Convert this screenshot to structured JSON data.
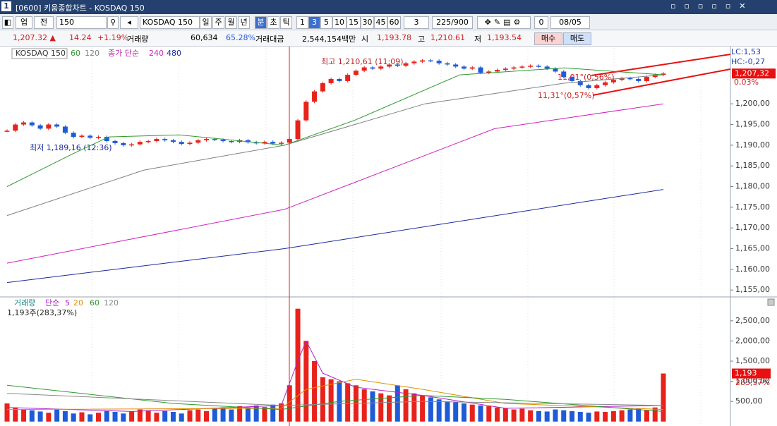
{
  "window": {
    "number": "1",
    "title": "[0600] 키움종합차트 - KOSDAQ 150"
  },
  "toolbar": {
    "market": "업",
    "scope": "전",
    "code": "150",
    "name": "KOSDAQ 150",
    "periods": [
      "일",
      "주",
      "월",
      "년",
      "분",
      "초",
      "틱"
    ],
    "period_selected": 4,
    "intervals": [
      "1",
      "3",
      "5",
      "10",
      "15",
      "30",
      "45",
      "60"
    ],
    "interval_selected": 1,
    "count_select": "3",
    "count": "225/900",
    "checkbox_value": "0",
    "date": "08/05"
  },
  "quote": {
    "price": "1,207.32 ▲",
    "change": "14.24",
    "change_rate": "+1.19%",
    "volume_label": "거래량",
    "volume": "60,634",
    "volume_rate": "65.28%",
    "amount_label": "거래대금",
    "amount": "2,544,154백만",
    "open_label": "시",
    "open": "1,193.78",
    "high_label": "고",
    "high": "1,210.61",
    "low_label": "저",
    "low": "1,193.54",
    "buy": "매수",
    "sell": "매도"
  },
  "price_chart": {
    "type": "candlestick",
    "name": "KOSDAQ 150",
    "ma_label": "종가 단순",
    "up_color": "#e8221b",
    "down_color": "#1f5bd6",
    "values": [
      1193.5,
      1195,
      1195.5,
      1194.8,
      1194,
      1195,
      1194.5,
      1193,
      1192,
      1192.3,
      1191.8,
      1192,
      1191,
      1190.5,
      1190,
      1190.2,
      1190.8,
      1191,
      1191.5,
      1191.2,
      1190.8,
      1190.3,
      1190.6,
      1191.2,
      1191.5,
      1191.3,
      1191,
      1190.8,
      1191.2,
      1190.7,
      1190.5,
      1190.8,
      1190.4,
      1190.6,
      1191.5,
      1196,
      1200.5,
      1203,
      1205,
      1206,
      1205.5,
      1207,
      1208,
      1208.8,
      1208.5,
      1209,
      1209.5,
      1209.2,
      1209.8,
      1210.2,
      1210.5,
      1210.4,
      1209.8,
      1209.5,
      1209,
      1208.5,
      1208.8,
      1207.5,
      1207.8,
      1208.2,
      1208.5,
      1208.8,
      1209,
      1209.2,
      1209,
      1208.5,
      1207.8,
      1206.5,
      1205.5,
      1204.5,
      1203.8,
      1204.5,
      1205.2,
      1205.8,
      1206.2,
      1206,
      1205.5,
      1206.5,
      1207,
      1207.32
    ],
    "series": [
      {
        "name": "60",
        "color": "#2e9a2e",
        "x": [
          0,
          8,
          12.25,
          20.7,
          33.4,
          41.8,
          54.5,
          67.1,
          79
        ],
        "values": [
          1180,
          1188,
          1192,
          1192.5,
          1190,
          1196,
          1207,
          1208.7,
          1207
        ]
      },
      {
        "name": "120",
        "color": "#808080",
        "x": [
          0,
          16.5,
          33.4,
          50.3,
          67.1,
          79
        ],
        "values": [
          1173,
          1184,
          1190,
          1200,
          1205,
          1207
        ]
      },
      {
        "name": "240",
        "color": "#d020c0",
        "x": [
          0,
          33.4,
          58.7,
          79
        ],
        "values": [
          1161.5,
          1174.5,
          1194,
          1200
        ]
      },
      {
        "name": "480",
        "color": "#1a2a9a",
        "x": [
          0,
          33.4,
          79
        ],
        "values": [
          1156.8,
          1165,
          1179.3
        ]
      }
    ],
    "ylim": [
      1153.5,
      1213.5
    ],
    "yticks": [
      {
        "value": 1155,
        "label": "1,155,00"
      },
      {
        "value": 1160,
        "label": "1,160,00"
      },
      {
        "value": 1165,
        "label": "1,165,00"
      },
      {
        "value": 1170,
        "label": "1,170,00"
      },
      {
        "value": 1175,
        "label": "1,175,00"
      },
      {
        "value": 1180,
        "label": "1,180,00"
      },
      {
        "value": 1185,
        "label": "1,185,00"
      },
      {
        "value": 1190,
        "label": "1,190,00"
      },
      {
        "value": 1195,
        "label": "1,195,00"
      },
      {
        "value": 1200,
        "label": "1,200,00"
      }
    ],
    "annotations": {
      "high": "최고 1,210,61 (11:09)",
      "low": "최저 1,189,16 (12:36)",
      "angle_upper": "11,01°(0,56%)",
      "angle_lower": "11,31°(0,57%)",
      "lc": "LC:1,53",
      "hc": "HC:-0,27",
      "last_price": "1,207,32",
      "last_rate": "0,03%"
    }
  },
  "volume_chart": {
    "type": "bar",
    "name": "거래량",
    "ma_label": "단순",
    "values": [
      450,
      350,
      300,
      280,
      250,
      220,
      300,
      260,
      200,
      230,
      180,
      220,
      260,
      240,
      200,
      250,
      300,
      280,
      220,
      260,
      240,
      200,
      280,
      300,
      260,
      320,
      350,
      300,
      380,
      340,
      400,
      360,
      420,
      450,
      900,
      2800,
      2000,
      1500,
      1100,
      1050,
      1000,
      950,
      900,
      800,
      750,
      700,
      650,
      900,
      800,
      700,
      650,
      600,
      550,
      500,
      480,
      450,
      420,
      400,
      380,
      350,
      330,
      300,
      320,
      280,
      260,
      250,
      300,
      280,
      260,
      240,
      220,
      250,
      240,
      260,
      280,
      300,
      320,
      280,
      350,
      1193
    ],
    "series": [
      {
        "name": "5",
        "color": "#b020c8",
        "x": [
          0,
          15,
          33,
          35,
          36,
          38,
          42,
          50,
          60,
          79
        ],
        "values": [
          350,
          250,
          400,
          1500,
          2000,
          1200,
          850,
          650,
          330,
          400
        ]
      },
      {
        "name": "20",
        "color": "#e09000",
        "x": [
          0,
          33,
          36,
          42,
          50,
          60,
          79
        ],
        "values": [
          300,
          330,
          800,
          1050,
          800,
          450,
          300
        ]
      },
      {
        "name": "60",
        "color": "#2e9a2e",
        "x": [
          0,
          20,
          33,
          40,
          50,
          60,
          79
        ],
        "values": [
          900,
          450,
          300,
          500,
          650,
          550,
          250
        ]
      },
      {
        "name": "120",
        "color": "#888888",
        "x": [
          0,
          33,
          50,
          79
        ],
        "values": [
          700,
          400,
          500,
          400
        ]
      }
    ],
    "ylim": [
      -110,
      3040
    ],
    "yticks": [
      {
        "value": 500,
        "label": "500,00"
      },
      {
        "value": 1000,
        "label": "1,000,00"
      },
      {
        "value": 1500,
        "label": "1,500,00"
      },
      {
        "value": 2000,
        "label": "2,000,00"
      },
      {
        "value": 2500,
        "label": "2,500,00"
      }
    ],
    "annotations": {
      "summary": "1,193주(283,37%)",
      "last_volume": "1,193",
      "last_rate": "283,37%"
    }
  }
}
